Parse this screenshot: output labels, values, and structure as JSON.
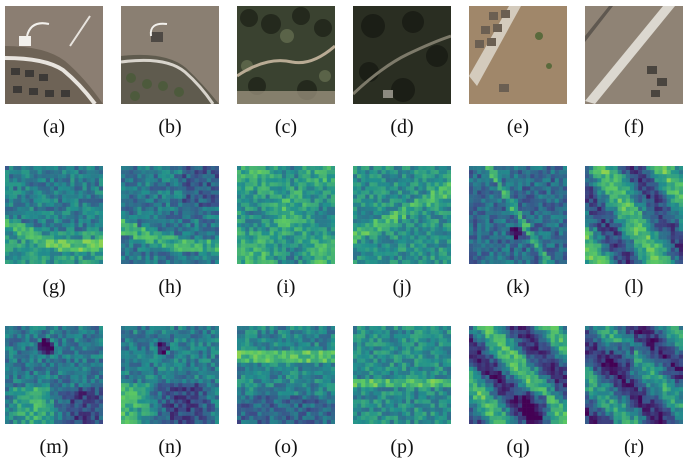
{
  "figure": {
    "panels": [
      {
        "label": "(a)",
        "kind": "aerial",
        "scene": "suburb-curve"
      },
      {
        "label": "(b)",
        "kind": "aerial",
        "scene": "suburb-curve-2"
      },
      {
        "label": "(c)",
        "kind": "aerial",
        "scene": "forest-path"
      },
      {
        "label": "(d)",
        "kind": "aerial",
        "scene": "dark-forest"
      },
      {
        "label": "(e)",
        "kind": "aerial",
        "scene": "row-houses"
      },
      {
        "label": "(f)",
        "kind": "aerial",
        "scene": "diagonal-road"
      },
      {
        "label": "(g)",
        "kind": "heatmap",
        "pattern": "g"
      },
      {
        "label": "(h)",
        "kind": "heatmap",
        "pattern": "h"
      },
      {
        "label": "(i)",
        "kind": "heatmap",
        "pattern": "i"
      },
      {
        "label": "(j)",
        "kind": "heatmap",
        "pattern": "j"
      },
      {
        "label": "(k)",
        "kind": "heatmap",
        "pattern": "k"
      },
      {
        "label": "(l)",
        "kind": "heatmap",
        "pattern": "l"
      },
      {
        "label": "(m)",
        "kind": "heatmap",
        "pattern": "m"
      },
      {
        "label": "(n)",
        "kind": "heatmap",
        "pattern": "n"
      },
      {
        "label": "(o)",
        "kind": "heatmap",
        "pattern": "o"
      },
      {
        "label": "(p)",
        "kind": "heatmap",
        "pattern": "p"
      },
      {
        "label": "(q)",
        "kind": "heatmap",
        "pattern": "q"
      },
      {
        "label": "(r)",
        "kind": "heatmap",
        "pattern": "r"
      }
    ],
    "colormap": [
      "#440154",
      "#3b528b",
      "#21908d",
      "#5dc963",
      "#fde725"
    ]
  }
}
